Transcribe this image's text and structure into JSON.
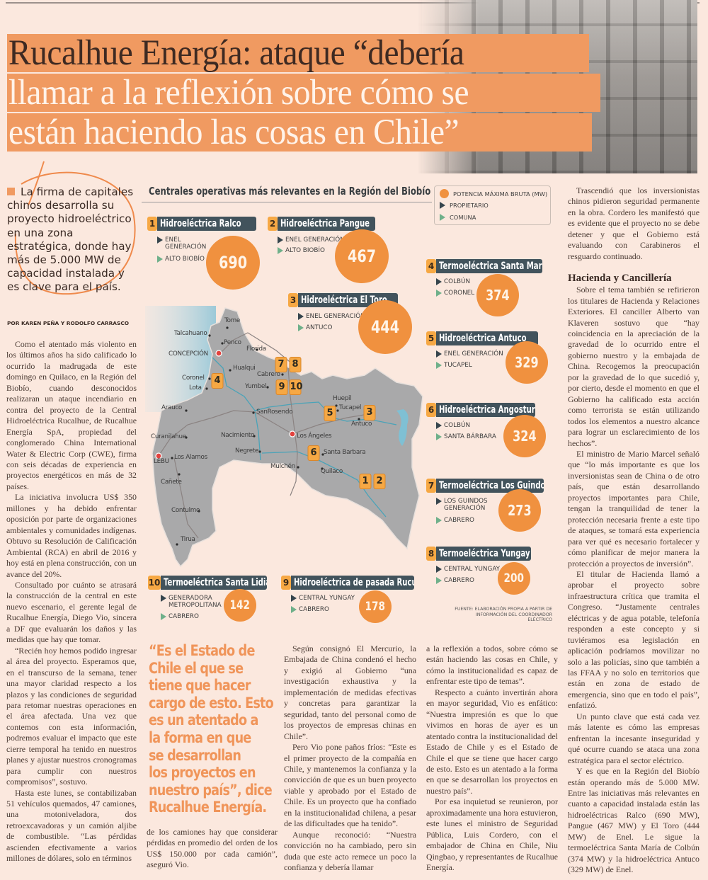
{
  "headline": {
    "line1": "Rucalhue Energía: ataque “debería",
    "line2": "llamar a la reflexión sobre cómo se",
    "line3": "están haciendo las cosas en Chile”"
  },
  "lead": "La firma de capitales chinos desarrolla su proyecto hidroeléctrico en una zona estratégica, donde hay más de 5.000 MW de capacidad instalada y es clave para el país.",
  "byline": "POR KAREN PEÑA Y RODOLFO CARRASCO",
  "colors": {
    "accent": "#f09a61",
    "label_bar": "#42535c",
    "number_box": "#f6a844",
    "background": "#fbe8de"
  },
  "infographic": {
    "title": "Centrales operativas más relevantes en la Región del Biobío",
    "legend": {
      "power": "POTENCIA MÁXIMA BRUTA (MW)",
      "owner": "PROPIETARIO",
      "commune": "COMUNA"
    },
    "source": "FUENTE: ELABORACIÓN PROPIA A PARTIR DE INFORMACIÓN DEL COORDINADOR ELÉCTRICO",
    "plants": [
      {
        "num": "1",
        "name": "Hidroeléctrica Ralco",
        "owner_l1": "ENEL",
        "owner_l2": "GENERACIÓN",
        "commune": "ALTO BIOBÍO",
        "mw": "690"
      },
      {
        "num": "2",
        "name": "Hidroeléctrica Pangue",
        "owner_l1": "ENEL GENERACIÓN",
        "commune": "ALTO BIOBÍO",
        "mw": "467"
      },
      {
        "num": "3",
        "name": "Hidroeléctrica El Toro",
        "owner_l1": "ENEL GENERACIÓN",
        "commune": "ANTUCO",
        "mw": "444"
      },
      {
        "num": "4",
        "name": "Termoeléctrica Santa María",
        "owner_l1": "COLBÚN",
        "commune": "CORONEL",
        "mw": "374"
      },
      {
        "num": "5",
        "name": "Hidroeléctrica Antuco",
        "owner_l1": "ENEL GENERACIÓN",
        "commune": "TUCAPEL",
        "mw": "329"
      },
      {
        "num": "6",
        "name": "Hidroeléctrica Angostura",
        "owner_l1": "COLBÚN",
        "commune": "SANTA BÁRBARA",
        "mw": "324"
      },
      {
        "num": "7",
        "name": "Termoeléctrica Los Guindos",
        "owner_l1": "LOS GUINDOS",
        "owner_l2": "GENERACIÓN",
        "commune": "CABRERO",
        "mw": "273"
      },
      {
        "num": "8",
        "name": "Termoeléctrica Yungay",
        "owner_l1": "CENTRAL YUNGAY",
        "commune": "CABRERO",
        "mw": "200"
      },
      {
        "num": "9",
        "name": "Hidroeléctrica de pasada Rucue",
        "owner_l1": "CENTRAL YUNGAY",
        "commune": "CABRERO",
        "mw": "178"
      },
      {
        "num": "10",
        "name": "Termoeléctrica Santa Lidia",
        "owner_l1": "GENERADORA",
        "owner_l2": "METROPOLITANA",
        "commune": "CABRERO",
        "mw": "142"
      }
    ],
    "map": {
      "cities": [
        "Tome",
        "Talcahuano",
        "Penco",
        "Florida",
        "CONCEPCIÓN",
        "Hualqui",
        "Cabrero",
        "Coronel",
        "Lota",
        "Yumbel",
        "Arauco",
        "SanRosendo",
        "Huepil",
        "Tucapel",
        "Antuco",
        "Curanilahue",
        "Nacimiento",
        "Los Ángeles",
        "Negrete",
        "Santa Barbara",
        "LEBU",
        "Los Alamos",
        "Mulchén",
        "Quilaco",
        "Cañete",
        "Contulmo",
        "Tirua"
      ],
      "markers": [
        "7",
        "8",
        "4",
        "9",
        "10",
        "5",
        "3",
        "6",
        "1",
        "2"
      ]
    }
  },
  "quote": [
    "“Es el Estado de",
    "Chile el que se",
    "tiene que hacer",
    "cargo de esto. Esto",
    "es un atentado a",
    "la forma en que",
    "se desarrollan",
    "los proyectos en",
    "nuestro país”, dice",
    "Rucalhue Energía."
  ],
  "body": {
    "col1": [
      "Como el atentado más violento en los últimos años ha sido calificado lo ocurrido la madrugada de este domingo en Quilaco, en la Región del Biobío, cuando desconocidos realizaran un ataque incendiario en contra del proyecto de la Central Hidroeléctrica Rucalhue, de Rucalhue Energía SpA, propiedad del conglomerado China International Water & Electric Corp (CWE), firma con seis décadas de experiencia en proyectos energéticos en más de 32 países.",
      "La iniciativa involucra US$ 350 millones y ha debido enfrentar oposición por parte de organizaciones ambientales y comunidades indígenas. Obtuvo su Resolución de Calificación Ambiental (RCA) en abril de 2016 y hoy está en plena construcción, con un avance del 20%.",
      "Consultado por cuánto se atrasará la construcción de la central en este nuevo escenario, el gerente legal de Rucalhue Energía, Diego Vio, sincera a DF que evaluarán los daños y las medidas que hay que tomar.",
      "“Recién hoy hemos podido ingresar al área del proyecto. Esperamos que, en el transcurso de la semana, tener una mayor claridad respecto a los plazos y las condiciones de seguridad para retomar nuestras operaciones en el área afectada. Una vez que contemos con esta información, podremos evaluar el impacto que este cierre temporal ha tenido en nuestros planes y ajustar nuestros cronogramas para cumplir con nuestros compromisos”, sostuvo.",
      "Hasta este lunes, se contabilizaban 51 vehículos quemados, 47 camiones, una motoniveladora, dos retroexcavadoras y un camión aljibe de combustible. “Las pérdidas ascienden efectivamente a varios millones de dólares, solo en términos"
    ],
    "col2": [
      "de los camiones hay que considerar pérdidas en promedio del orden de los US$ 150.000 por cada camión”, aseguró Vio."
    ],
    "col3": [
      "Según consignó El Mercurio, la Embajada de China condenó el hecho y exigió al Gobierno “una investigación exhaustiva y la implementación de medidas efectivas y concretas para garantizar la seguridad, tanto del personal como de los proyectos de empresas chinas en Chile”.",
      "Pero Vio pone paños fríos: “Este es el primer proyecto de la compañía en Chile, y mantenemos la confianza y la convicción de que es un buen proyecto viable y aprobado por el Estado de Chile. Es un proyecto que ha confiado en la institucionalidad chilena, a pesar de las dificultades que ha tenido”.",
      "Aunque reconoció: “Nuestra convicción no ha cambiado, pero sin duda que este acto remece un poco la confianza y debería llamar"
    ],
    "col4": [
      "a la reflexión a todos, sobre cómo se están haciendo las cosas en Chile, y cómo la institucionalidad es capaz de enfrentar este tipo de temas”.",
      "Respecto a cuánto invertirán ahora en mayor seguridad, Vio es enfático: “Nuestra impresión es que lo que vivimos en horas de ayer es un atentado contra la institucionalidad del Estado de Chile y es el Estado de Chile el que se tiene que hacer cargo de esto. Esto es un atentado a la forma en que se desarrollan los proyectos en nuestro país”.",
      "Por esa inquietud se reunieron, por aproximadamente una hora estuvieron, este lunes el ministro de Seguridad Pública, Luis Cordero, con el embajador de China en Chile, Niu Qingbao, y representantes de Rucalhue Energía."
    ],
    "col5_intro": "Trascendió que los inversionistas chinos pidieron seguridad permanente en la obra. Cordero les manifestó que es evidente que el proyecto no se debe detener y que el Gobierno está evaluando con Carabineros el resguardo continuado.",
    "subhead": "Hacienda y Cancillería",
    "col5": [
      "Sobre el tema también se refirieron los titulares de Hacienda y Relaciones Exteriores. El canciller Alberto van Klaveren sostuvo que “hay coincidencia en la apreciación de la gravedad de lo ocurrido entre el gobierno nuestro y la embajada de China. Recogemos la preocupación por la gravedad de lo que sucedió y, por cierto, desde el momento en que el Gobierno ha calificado esta acción como terrorista se están utilizando todos los elementos a nuestro alcance para lograr un esclarecimiento de los hechos”.",
      "El ministro de Mario Marcel señaló que “lo más importante es que los inversionistas sean de China o de otro país, que están desarrollando proyectos importantes para Chile, tengan la tranquilidad de tener la protección necesaria frente a este tipo de ataques, se tomará esta experiencia para ver qué es necesario fortalecer y cómo planificar de mejor manera la protección a proyectos de inversión”.",
      "El titular de Hacienda llamó a aprobar el proyecto sobre infraestructura crítica que tramita el Congreso. “Justamente centrales eléctricas y de agua potable, telefonía responden a este concepto y si tuviéramos esa legislación en aplicación podríamos movilizar no solo a las policías, sino que también a las FFAA y no solo en territorios que están en zona de estado de emergencia, sino que en todo el país”, enfatizó.",
      "Un punto clave que está cada vez más latente es cómo las empresas enfrentan la incesante inseguridad y qué ocurre cuando se ataca una zona estratégica para el sector eléctrico.",
      "Y es que en la Región del Biobío están operando más de 5.000 MW. Entre las iniciativas más relevantes en cuanto a capacidad instalada están las hidroeléctricas Ralco (690 MW), Pangue (467 MW) y El Toro (444 MW) de Enel. Le sigue la termoeléctrica Santa María de Colbún (374 MW) y la hidroeléctrica Antuco (329 MW) de Enel."
    ]
  }
}
